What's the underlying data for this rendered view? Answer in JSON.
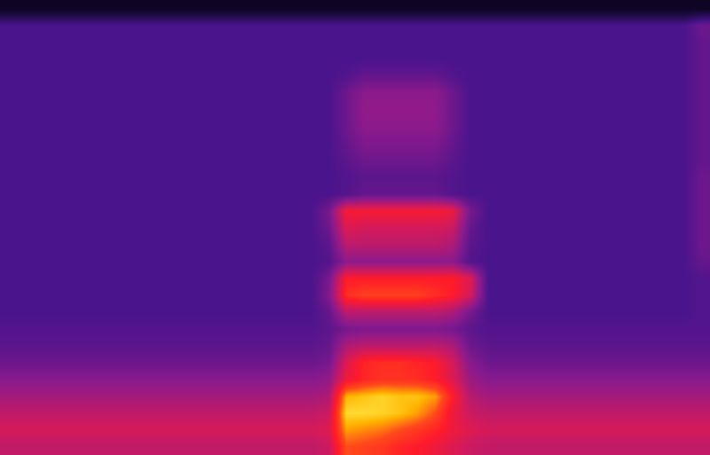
{
  "chart_data": {
    "type": "heatmap",
    "color": "inferno",
    "zlim": [
      0,
      100
    ],
    "tick_labels": false,
    "z": [
      [
        8,
        8,
        8,
        8,
        8,
        8,
        8,
        8,
        8,
        8,
        8,
        8,
        8,
        8,
        8,
        8,
        8,
        8,
        8,
        8,
        8,
        8,
        8,
        8,
        8,
        8,
        8,
        8,
        8,
        8,
        8,
        8,
        8,
        8,
        8,
        8,
        8,
        8,
        8,
        8
      ],
      [
        30,
        30,
        30,
        30,
        30,
        30,
        30,
        30,
        30,
        30,
        30,
        30,
        30,
        30,
        30,
        30,
        30,
        30,
        30,
        30,
        30,
        30,
        30,
        30,
        30,
        30,
        30,
        30,
        30,
        30,
        30,
        30,
        30,
        30,
        30,
        30,
        30,
        30,
        30,
        38
      ],
      [
        30,
        30,
        30,
        30,
        30,
        30,
        30,
        30,
        30,
        30,
        30,
        30,
        30,
        30,
        30,
        30,
        30,
        30,
        30,
        30,
        30,
        30,
        30,
        30,
        30,
        30,
        30,
        30,
        30,
        30,
        30,
        30,
        30,
        30,
        30,
        30,
        30,
        30,
        30,
        36
      ],
      [
        30,
        30,
        30,
        30,
        30,
        30,
        30,
        30,
        30,
        30,
        30,
        30,
        30,
        30,
        30,
        30,
        30,
        30,
        30,
        30,
        30,
        30,
        30,
        30,
        30,
        30,
        30,
        30,
        30,
        30,
        30,
        30,
        30,
        30,
        30,
        30,
        30,
        30,
        30,
        36
      ],
      [
        30,
        30,
        30,
        30,
        30,
        30,
        30,
        30,
        30,
        30,
        30,
        30,
        30,
        30,
        30,
        30,
        30,
        30,
        30,
        32,
        36,
        36,
        36,
        36,
        36,
        32,
        30,
        30,
        30,
        30,
        30,
        30,
        30,
        30,
        30,
        30,
        30,
        30,
        30,
        36
      ],
      [
        30,
        30,
        30,
        30,
        30,
        30,
        30,
        30,
        30,
        30,
        30,
        30,
        30,
        30,
        30,
        30,
        30,
        30,
        30,
        38,
        45,
        45,
        45,
        45,
        45,
        38,
        30,
        30,
        30,
        30,
        30,
        30,
        30,
        30,
        30,
        30,
        30,
        30,
        30,
        36
      ],
      [
        30,
        30,
        30,
        30,
        30,
        30,
        30,
        30,
        30,
        30,
        30,
        30,
        30,
        30,
        30,
        30,
        30,
        30,
        30,
        38,
        46,
        46,
        46,
        46,
        46,
        38,
        30,
        30,
        30,
        30,
        30,
        30,
        30,
        30,
        30,
        30,
        30,
        30,
        30,
        36
      ],
      [
        30,
        30,
        30,
        30,
        30,
        30,
        30,
        30,
        30,
        30,
        30,
        30,
        30,
        30,
        30,
        30,
        30,
        30,
        30,
        38,
        45,
        45,
        45,
        45,
        45,
        38,
        30,
        30,
        30,
        30,
        30,
        30,
        30,
        30,
        30,
        30,
        30,
        30,
        30,
        36
      ],
      [
        30,
        30,
        30,
        30,
        30,
        30,
        30,
        30,
        30,
        30,
        30,
        30,
        30,
        30,
        30,
        30,
        30,
        30,
        30,
        36,
        42,
        42,
        42,
        42,
        42,
        36,
        30,
        30,
        30,
        30,
        30,
        30,
        30,
        30,
        30,
        30,
        30,
        30,
        30,
        36
      ],
      [
        30,
        30,
        30,
        30,
        30,
        30,
        30,
        30,
        30,
        30,
        30,
        30,
        30,
        30,
        30,
        30,
        30,
        30,
        30,
        34,
        38,
        38,
        38,
        38,
        38,
        34,
        30,
        30,
        30,
        30,
        30,
        30,
        30,
        30,
        30,
        30,
        30,
        30,
        30,
        36
      ],
      [
        30,
        30,
        30,
        30,
        30,
        30,
        30,
        30,
        30,
        30,
        30,
        30,
        30,
        30,
        30,
        30,
        30,
        30,
        30,
        32,
        34,
        34,
        34,
        34,
        34,
        32,
        30,
        30,
        30,
        30,
        30,
        30,
        30,
        30,
        30,
        30,
        30,
        30,
        30,
        38
      ],
      [
        30,
        30,
        30,
        30,
        30,
        30,
        30,
        30,
        30,
        30,
        30,
        30,
        30,
        30,
        30,
        30,
        30,
        30,
        30,
        32,
        36,
        36,
        36,
        36,
        36,
        32,
        30,
        30,
        30,
        30,
        30,
        30,
        30,
        30,
        30,
        30,
        30,
        30,
        30,
        38
      ],
      [
        30,
        30,
        30,
        30,
        30,
        30,
        30,
        30,
        30,
        30,
        30,
        30,
        30,
        30,
        30,
        30,
        30,
        30,
        40,
        68,
        68,
        68,
        68,
        68,
        68,
        66,
        40,
        30,
        30,
        30,
        30,
        30,
        30,
        30,
        30,
        30,
        30,
        30,
        30,
        38
      ],
      [
        30,
        30,
        30,
        30,
        30,
        30,
        30,
        30,
        30,
        30,
        30,
        30,
        30,
        30,
        30,
        30,
        30,
        30,
        38,
        62,
        60,
        60,
        60,
        60,
        60,
        58,
        36,
        30,
        30,
        30,
        30,
        30,
        30,
        30,
        30,
        30,
        30,
        30,
        30,
        38
      ],
      [
        30,
        30,
        30,
        30,
        30,
        30,
        30,
        30,
        30,
        30,
        30,
        30,
        30,
        30,
        30,
        30,
        30,
        30,
        34,
        55,
        55,
        55,
        55,
        55,
        55,
        52,
        34,
        30,
        30,
        30,
        30,
        30,
        30,
        30,
        30,
        30,
        30,
        30,
        30,
        38
      ],
      [
        30,
        30,
        30,
        30,
        30,
        30,
        30,
        30,
        30,
        30,
        30,
        30,
        30,
        30,
        30,
        30,
        30,
        30,
        32,
        45,
        45,
        45,
        45,
        45,
        45,
        45,
        32,
        30,
        30,
        30,
        30,
        30,
        30,
        30,
        30,
        30,
        30,
        30,
        30,
        36
      ],
      [
        30,
        30,
        30,
        30,
        30,
        30,
        30,
        30,
        30,
        30,
        30,
        30,
        30,
        30,
        30,
        30,
        30,
        30,
        40,
        70,
        70,
        70,
        70,
        70,
        70,
        70,
        62,
        30,
        30,
        30,
        30,
        30,
        30,
        30,
        30,
        30,
        30,
        30,
        30,
        32
      ],
      [
        30,
        30,
        30,
        30,
        30,
        30,
        30,
        30,
        30,
        30,
        30,
        30,
        30,
        30,
        30,
        30,
        30,
        30,
        42,
        74,
        78,
        78,
        78,
        78,
        74,
        70,
        60,
        30,
        30,
        30,
        30,
        30,
        30,
        30,
        30,
        30,
        30,
        30,
        30,
        32
      ],
      [
        30,
        30,
        30,
        30,
        30,
        30,
        30,
        30,
        30,
        30,
        30,
        30,
        30,
        30,
        30,
        30,
        30,
        30,
        36,
        55,
        55,
        55,
        55,
        55,
        55,
        52,
        40,
        30,
        30,
        30,
        30,
        30,
        30,
        30,
        30,
        30,
        30,
        30,
        30,
        32
      ],
      [
        32,
        32,
        32,
        32,
        32,
        32,
        32,
        32,
        32,
        32,
        32,
        32,
        32,
        32,
        32,
        32,
        32,
        32,
        34,
        40,
        42,
        42,
        42,
        42,
        42,
        40,
        34,
        32,
        32,
        32,
        32,
        32,
        32,
        32,
        32,
        32,
        32,
        32,
        32,
        32
      ],
      [
        34,
        34,
        34,
        34,
        34,
        34,
        34,
        34,
        34,
        34,
        34,
        34,
        34,
        34,
        34,
        34,
        34,
        34,
        36,
        52,
        55,
        55,
        55,
        55,
        55,
        52,
        38,
        34,
        34,
        34,
        34,
        34,
        34,
        34,
        34,
        34,
        34,
        34,
        34,
        34
      ],
      [
        38,
        38,
        38,
        38,
        38,
        38,
        38,
        38,
        38,
        38,
        38,
        38,
        38,
        38,
        38,
        38,
        38,
        38,
        40,
        62,
        72,
        74,
        74,
        72,
        70,
        60,
        44,
        38,
        38,
        38,
        38,
        38,
        38,
        38,
        38,
        38,
        38,
        38,
        38,
        38
      ],
      [
        44,
        44,
        44,
        44,
        44,
        44,
        44,
        44,
        44,
        44,
        44,
        44,
        44,
        44,
        44,
        44,
        44,
        44,
        46,
        66,
        72,
        75,
        75,
        74,
        70,
        62,
        48,
        44,
        44,
        44,
        44,
        44,
        44,
        44,
        44,
        44,
        44,
        44,
        44,
        44
      ],
      [
        50,
        50,
        50,
        50,
        50,
        50,
        50,
        50,
        50,
        50,
        50,
        50,
        50,
        50,
        50,
        50,
        50,
        50,
        52,
        90,
        92,
        94,
        92,
        92,
        88,
        70,
        54,
        50,
        50,
        50,
        50,
        50,
        50,
        50,
        50,
        50,
        50,
        50,
        50,
        50
      ],
      [
        56,
        56,
        56,
        56,
        56,
        56,
        56,
        56,
        56,
        56,
        56,
        56,
        56,
        56,
        56,
        56,
        56,
        56,
        58,
        95,
        95,
        94,
        92,
        88,
        80,
        66,
        58,
        56,
        56,
        56,
        56,
        56,
        56,
        56,
        56,
        56,
        56,
        56,
        56,
        56
      ],
      [
        60,
        60,
        60,
        60,
        60,
        60,
        60,
        60,
        60,
        60,
        60,
        60,
        60,
        60,
        60,
        60,
        60,
        60,
        62,
        88,
        86,
        84,
        80,
        76,
        72,
        66,
        62,
        60,
        60,
        60,
        60,
        60,
        60,
        60,
        60,
        60,
        60,
        60,
        60,
        60
      ],
      [
        56,
        56,
        56,
        56,
        56,
        56,
        56,
        56,
        56,
        56,
        56,
        56,
        56,
        56,
        56,
        56,
        56,
        56,
        58,
        80,
        78,
        76,
        72,
        70,
        66,
        62,
        58,
        56,
        56,
        56,
        56,
        56,
        56,
        56,
        56,
        56,
        56,
        56,
        56,
        56
      ]
    ]
  }
}
